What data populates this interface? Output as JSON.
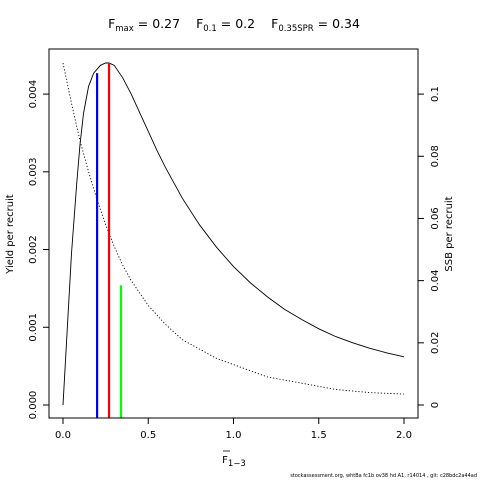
{
  "title": {
    "fmax_label": "F",
    "fmax_sub": "max",
    "fmax_value": " = 0.27",
    "f01_label": "F",
    "f01_sub": "0.1",
    "f01_value": " = 0.2",
    "fspr_label": "F",
    "fspr_sub": "0.35SPR",
    "fspr_value": " = 0.34"
  },
  "footer": "stockassessment.org,  whtBa  fc1b  ov38  hd  A1,  r14014 ,  git:  c28bdc2a44ad",
  "chart_data": {
    "type": "line",
    "xlabel_base": "F",
    "xlabel_sub": "1−3",
    "ylabel_left": "Yield per recruit",
    "ylabel_right": "SSB per recruit",
    "xlim": [
      0,
      2
    ],
    "ylim_left": [
      0,
      0.0044
    ],
    "ylim_right": [
      0,
      0.11
    ],
    "x_ticks": [
      0,
      0.5,
      1,
      1.5,
      2
    ],
    "x_tick_labels": [
      "0.0",
      "0.5",
      "1.0",
      "1.5",
      "2.0"
    ],
    "y_left_ticks": [
      0,
      0.001,
      0.002,
      0.003,
      0.004
    ],
    "y_left_tick_labels": [
      "0.000",
      "0.001",
      "0.002",
      "0.003",
      "0.004"
    ],
    "y_right_ticks": [
      0,
      0.02,
      0.04,
      0.06,
      0.08,
      0.1
    ],
    "y_right_tick_labels": [
      "0",
      "0.02",
      "0.04",
      "0.06",
      "0.08",
      "0.1"
    ],
    "series": [
      {
        "key": "yield",
        "axis": "left",
        "style": "solid",
        "color": "#000000",
        "x": [
          0,
          0.02,
          0.05,
          0.08,
          0.1,
          0.12,
          0.15,
          0.18,
          0.2,
          0.22,
          0.25,
          0.27,
          0.3,
          0.35,
          0.4,
          0.45,
          0.5,
          0.55,
          0.6,
          0.7,
          0.8,
          0.9,
          1.0,
          1.1,
          1.2,
          1.3,
          1.4,
          1.5,
          1.6,
          1.7,
          1.8,
          1.9,
          2.0
        ],
        "y": [
          0,
          0.00078,
          0.00195,
          0.00283,
          0.00335,
          0.00375,
          0.0041,
          0.00427,
          0.00432,
          0.00437,
          0.0044,
          0.0044,
          0.00437,
          0.00421,
          0.004,
          0.00376,
          0.00352,
          0.00328,
          0.00306,
          0.00266,
          0.00232,
          0.00203,
          0.00178,
          0.00157,
          0.00139,
          0.00123,
          0.0011,
          0.00098,
          0.00088,
          0.0008,
          0.00073,
          0.00067,
          0.00062
        ]
      },
      {
        "key": "ssb",
        "axis": "right",
        "style": "dotted",
        "color": "#000000",
        "x": [
          0,
          0.05,
          0.1,
          0.15,
          0.2,
          0.25,
          0.3,
          0.35,
          0.4,
          0.5,
          0.6,
          0.7,
          0.8,
          0.9,
          1.0,
          1.2,
          1.4,
          1.6,
          1.8,
          2.0
        ],
        "y": [
          0.11,
          0.097,
          0.085,
          0.075,
          0.066,
          0.058,
          0.051,
          0.045,
          0.04,
          0.032,
          0.026,
          0.021,
          0.018,
          0.015,
          0.013,
          0.009,
          0.007,
          0.005,
          0.004,
          0.0035
        ]
      }
    ],
    "reference_lines": [
      {
        "key": "f01",
        "x": 0.2,
        "y_top": 0.00427,
        "axis": "left",
        "color": "#0000ff"
      },
      {
        "key": "fmax",
        "x": 0.27,
        "y_top": 0.0044,
        "axis": "left",
        "color": "#ff0000"
      },
      {
        "key": "fspr",
        "x": 0.34,
        "y_top": 0.0385,
        "axis": "right",
        "color": "#00ff00"
      }
    ]
  }
}
